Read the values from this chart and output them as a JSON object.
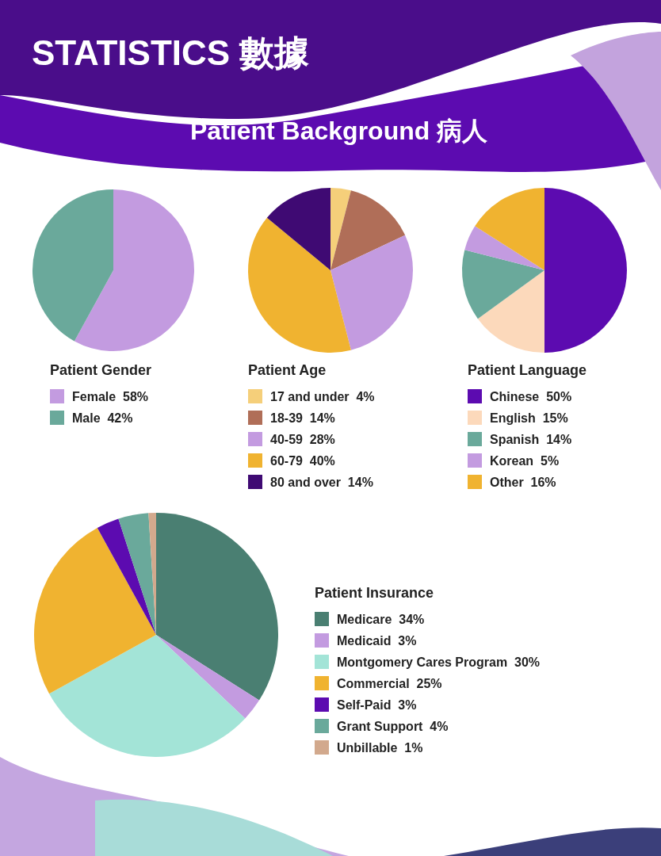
{
  "chart_data": [
    {
      "type": "pie",
      "title": "Patient Gender",
      "annotations": [
        "STATISTICS 數據",
        "Patient Background 病人"
      ],
      "categories": [
        "Female",
        "Male"
      ],
      "values": [
        58,
        42
      ],
      "colors": [
        "#c39be0",
        "#6aa99b"
      ],
      "value_labels": [
        "58%",
        "42%"
      ],
      "legend": "bottom"
    },
    {
      "type": "pie",
      "title": "Patient Age",
      "categories": [
        "17 and under",
        "18-39",
        "40-59",
        "60-79",
        "80 and over"
      ],
      "values": [
        4,
        14,
        28,
        40,
        14
      ],
      "colors": [
        "#f5cf7a",
        "#b06e58",
        "#c39be0",
        "#f0b330",
        "#3f0a73"
      ],
      "value_labels": [
        "4%",
        "14%",
        "28%",
        "40%",
        "14%"
      ],
      "legend": "bottom"
    },
    {
      "type": "pie",
      "title": "Patient Language",
      "categories": [
        "Chinese",
        "English",
        "Spanish",
        "Korean",
        "Other"
      ],
      "values": [
        50,
        15,
        14,
        5,
        16
      ],
      "colors": [
        "#5c0bb0",
        "#fcd9bb",
        "#6aa99b",
        "#c39be0",
        "#f0b330"
      ],
      "value_labels": [
        "50%",
        "15%",
        "14%",
        "5%",
        "16%"
      ],
      "legend": "bottom"
    },
    {
      "type": "pie",
      "title": "Patient Insurance",
      "categories": [
        "Medicare",
        "Medicaid",
        "Montgomery Cares Program",
        "Commercial",
        "Self-Paid",
        "Grant Support",
        "Unbillable"
      ],
      "values": [
        34,
        3,
        30,
        25,
        3,
        4,
        1
      ],
      "colors": [
        "#4a7f72",
        "#c39be0",
        "#a3e4d7",
        "#f0b330",
        "#5c0bb0",
        "#6aa99b",
        "#d2a98d"
      ],
      "value_labels": [
        "34%",
        "3%",
        "30%",
        "25%",
        "3%",
        "4%",
        "1%"
      ],
      "legend": "right"
    }
  ]
}
